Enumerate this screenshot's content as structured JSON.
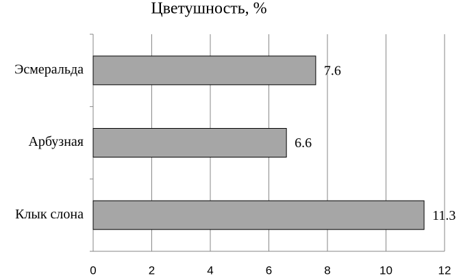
{
  "chart_data": {
    "type": "bar",
    "orientation": "horizontal",
    "title": "Цветушность, %",
    "categories": [
      "Эсмеральда",
      "Арбузная",
      "Клык слона"
    ],
    "values": [
      7.6,
      6.6,
      11.3
    ],
    "color": "#a6a6a6",
    "xlim": [
      0,
      12
    ],
    "xticks": [
      0,
      2,
      4,
      6,
      8,
      10,
      12
    ],
    "grid": true
  }
}
